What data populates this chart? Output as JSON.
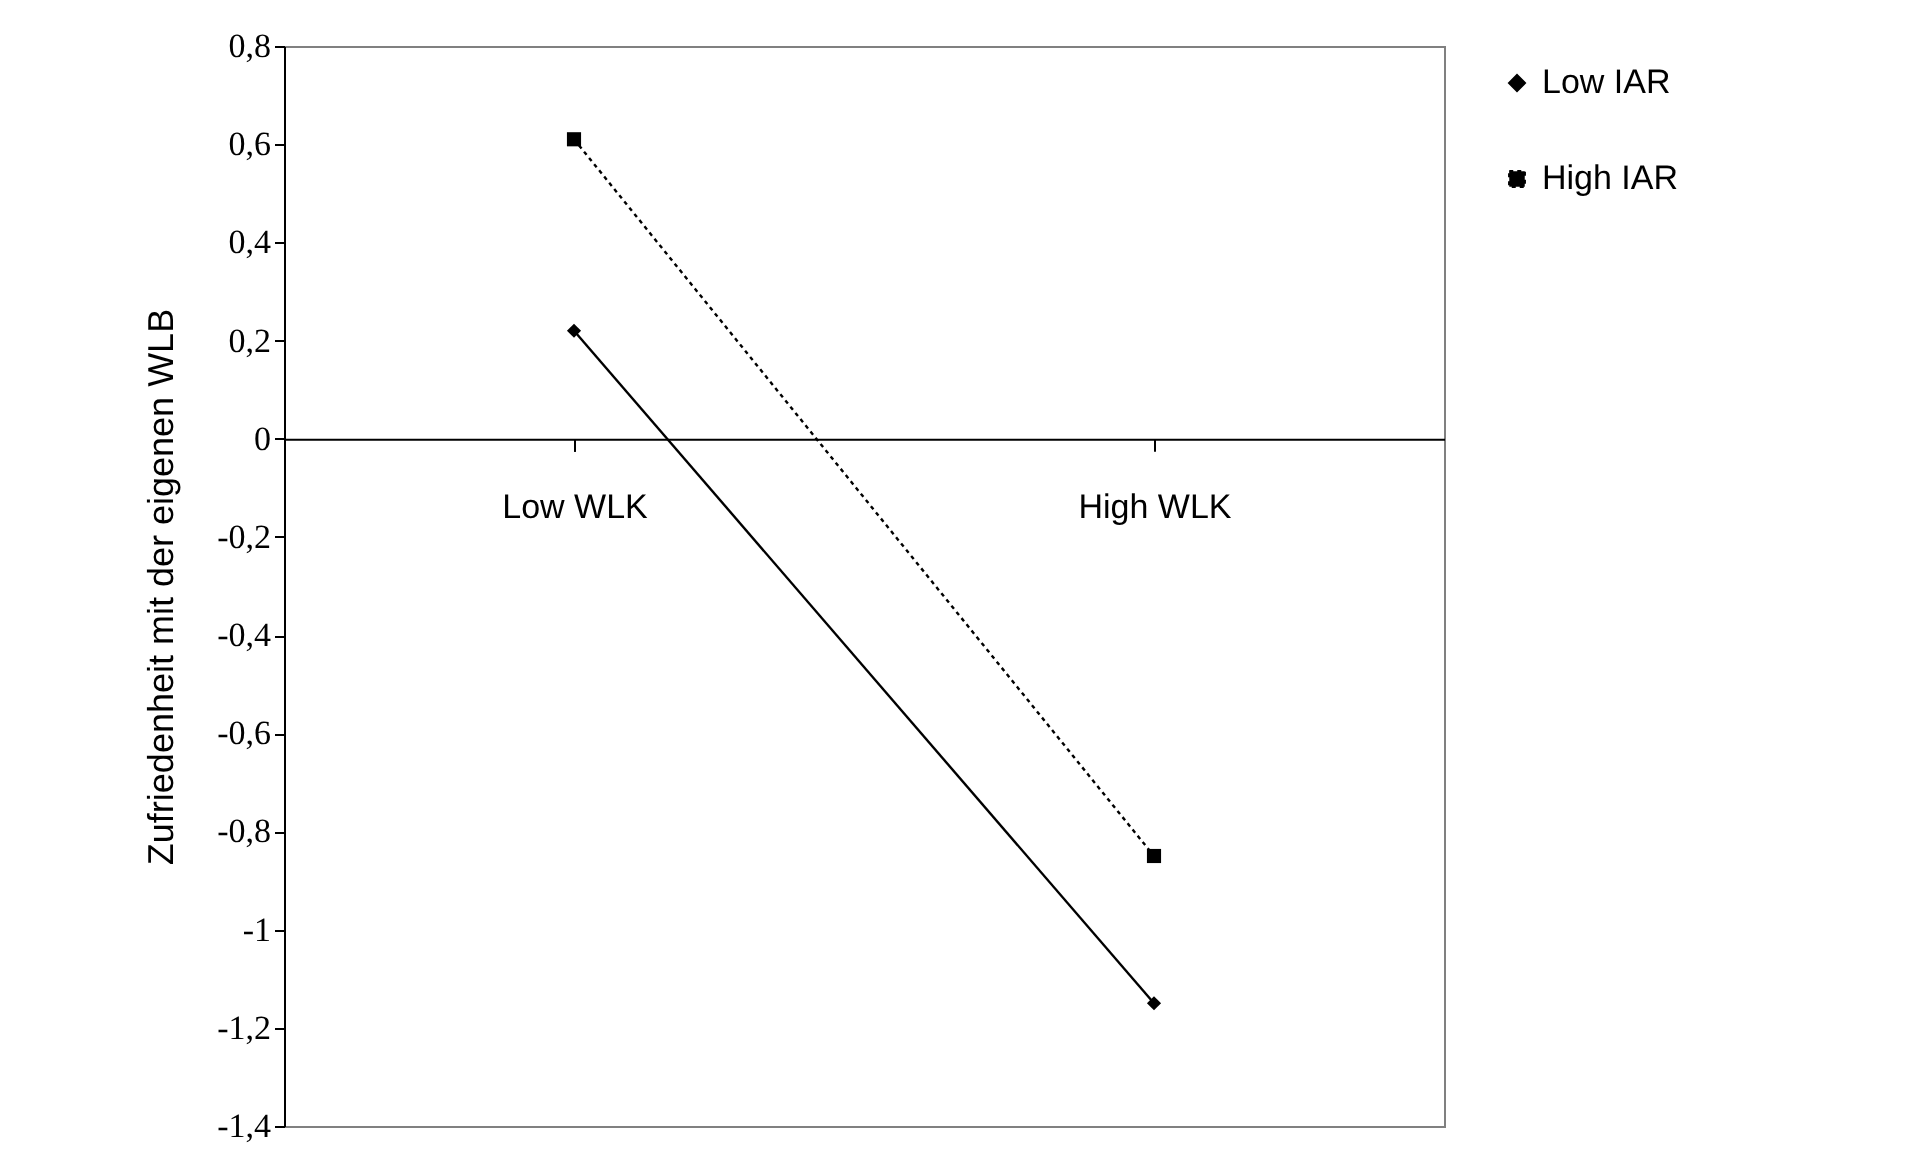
{
  "chart_data": {
    "type": "line",
    "ylabel": "Zufriedenheit mit der eigenen WLB",
    "categories": [
      "Low WLK",
      "High WLK"
    ],
    "series": [
      {
        "name": "Low IAR",
        "color": "#000000",
        "values": [
          0.22,
          -1.15
        ],
        "marker": "diamond",
        "line_style": "solid"
      },
      {
        "name": "High IAR",
        "color": "#000000",
        "values": [
          0.61,
          -0.85
        ],
        "marker": "square",
        "line_style": "dotted"
      }
    ],
    "ylim": [
      -1.4,
      0.8
    ],
    "yticks": [
      {
        "value": -1.4,
        "label": "-1,4"
      },
      {
        "value": -1.2,
        "label": "-1,2"
      },
      -1,
      {
        "value": -0.8,
        "label": "-0,8"
      },
      {
        "value": -0.6,
        "label": "-0,6"
      },
      {
        "value": -0.4,
        "label": "-0,4"
      },
      {
        "value": -0.2,
        "label": "-0,2"
      },
      0,
      {
        "value": 0.2,
        "label": "0,2"
      },
      {
        "value": 0.4,
        "label": "0,4"
      },
      {
        "value": 0.6,
        "label": "0,6"
      },
      {
        "value": 0.8,
        "label": "0,8"
      }
    ],
    "grid": false,
    "legend": "right"
  }
}
